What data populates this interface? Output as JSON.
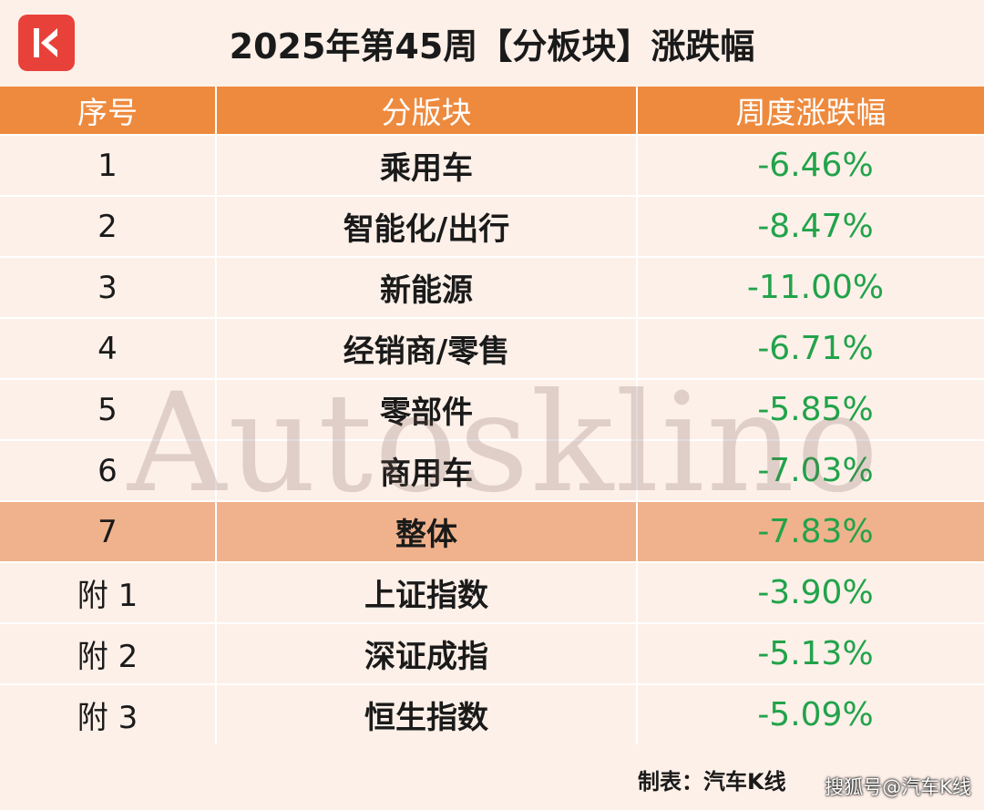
{
  "title": "2025年第45周【分板块】涨跌幅",
  "logo_letter": "K",
  "headers": [
    "序号",
    "分版块",
    "周度涨跌幅"
  ],
  "rows": [
    {
      "index": "1",
      "name": "乘用车",
      "value": "-6.46%"
    },
    {
      "index": "2",
      "name": "智能化/出行",
      "value": "-8.47%"
    },
    {
      "index": "3",
      "name": "新能源",
      "value": "-11.00%"
    },
    {
      "index": "4",
      "name": "经销商/零售",
      "value": "-6.71%"
    },
    {
      "index": "5",
      "name": "零部件",
      "value": "-5.85%"
    },
    {
      "index": "6",
      "name": "商用车",
      "value": "-7.03%"
    },
    {
      "index": "7",
      "name": "整体",
      "value": "-7.83%"
    },
    {
      "index": "附 1",
      "name": "上证指数",
      "value": "-3.90%"
    },
    {
      "index": "附 2",
      "name": "深证成指",
      "value": "-5.13%"
    },
    {
      "index": "附 3",
      "name": "恒生指数",
      "value": "-5.09%"
    }
  ],
  "watermark": "Autosklino",
  "credit": "制表：汽车K线",
  "source_mark": "搜狐号@汽车K线",
  "colors": {
    "header_bg": "#ee8a3e",
    "highlight_row_bg": "#f0b28c",
    "value_green": "#22a34a",
    "page_bg": "#fdf0e9",
    "logo_red": "#e8413a"
  }
}
